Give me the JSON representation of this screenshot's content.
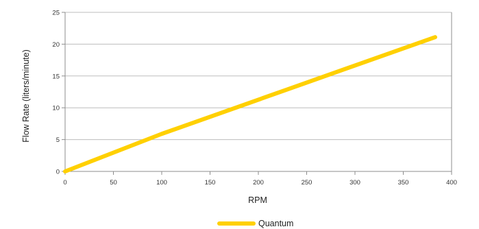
{
  "chart_data": {
    "type": "line",
    "xlabel": "RPM",
    "ylabel": "Flow Rate (liters/minute)",
    "xlim": [
      0,
      400
    ],
    "ylim": [
      0,
      25
    ],
    "x_ticks": [
      0,
      50,
      100,
      150,
      200,
      250,
      300,
      350,
      400
    ],
    "y_ticks": [
      0,
      5,
      10,
      15,
      20,
      25
    ],
    "grid": "horizontal",
    "legend_position": "bottom-center",
    "series": [
      {
        "name": "Quantum",
        "color": "#FFD000",
        "x": [
          0,
          100,
          383
        ],
        "y": [
          0,
          5.9,
          21.1
        ]
      }
    ]
  }
}
